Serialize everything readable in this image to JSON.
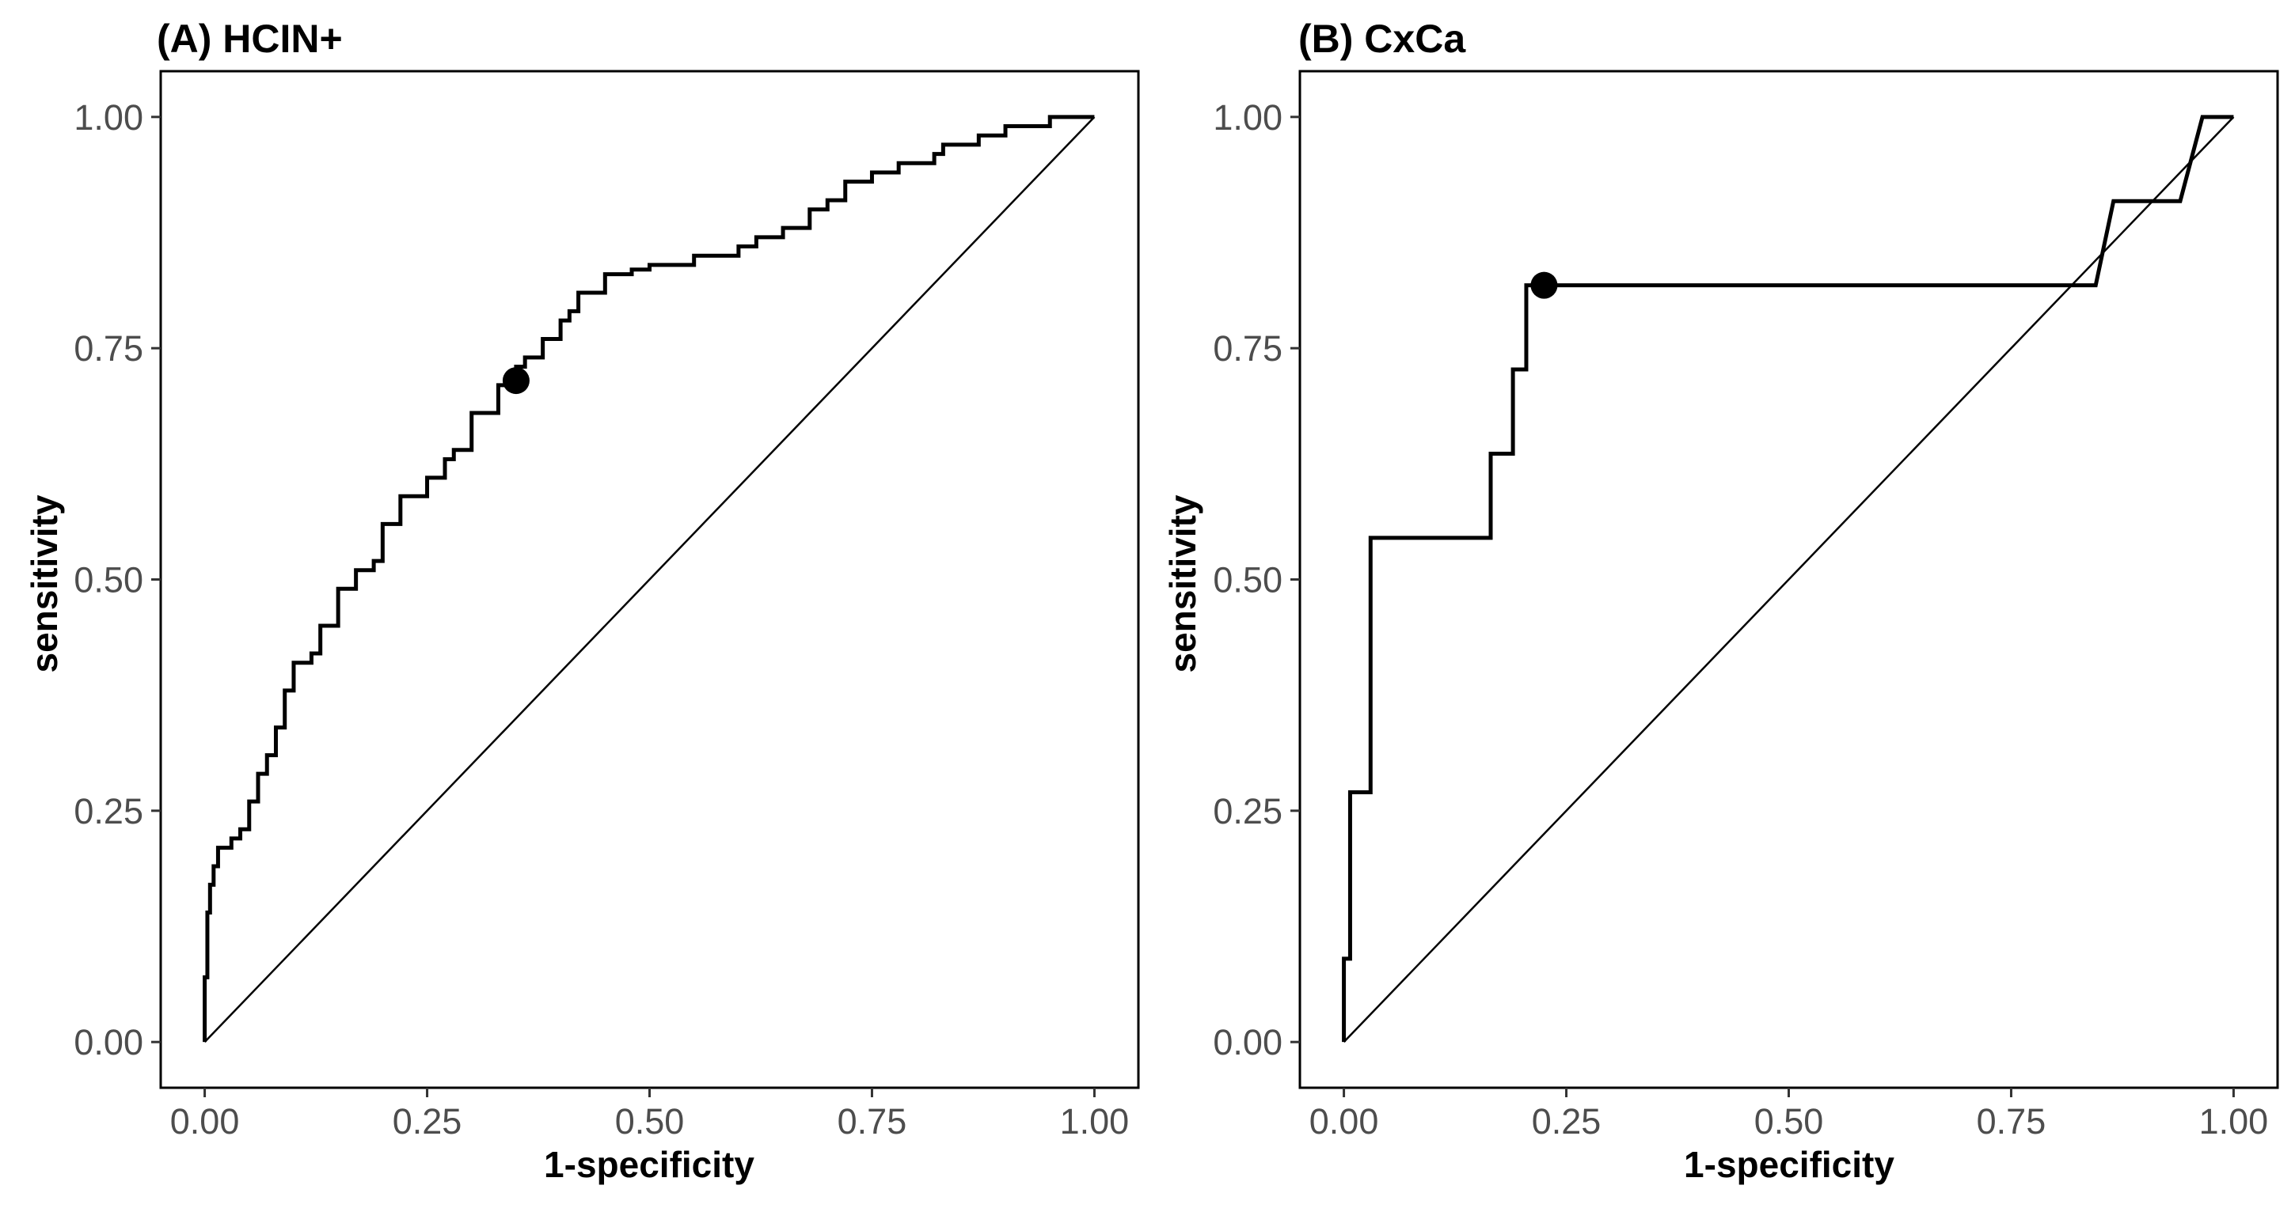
{
  "chart_data": [
    {
      "type": "line",
      "title": "(A) HCIN+",
      "xlabel": "1-specificity",
      "ylabel": "sensitivity",
      "xlim": [
        0,
        1
      ],
      "ylim": [
        0,
        1
      ],
      "xticks": [
        "0.00",
        "0.25",
        "0.50",
        "0.75",
        "1.00"
      ],
      "yticks": [
        "0.00",
        "0.25",
        "0.50",
        "0.75",
        "1.00"
      ],
      "grid": false,
      "reference_line": {
        "x": [
          0,
          1
        ],
        "y": [
          0,
          1
        ]
      },
      "roc_curve": {
        "x": [
          0.0,
          0.003,
          0.006,
          0.01,
          0.015,
          0.02,
          0.03,
          0.04,
          0.05,
          0.06,
          0.07,
          0.08,
          0.09,
          0.1,
          0.11,
          0.12,
          0.13,
          0.15,
          0.17,
          0.19,
          0.2,
          0.22,
          0.24,
          0.25,
          0.27,
          0.28,
          0.3,
          0.33,
          0.35,
          0.36,
          0.38,
          0.4,
          0.41,
          0.42,
          0.43,
          0.45,
          0.48,
          0.5,
          0.55,
          0.6,
          0.62,
          0.65,
          0.68,
          0.7,
          0.72,
          0.75,
          0.78,
          0.82,
          0.83,
          0.87,
          0.9,
          0.95,
          1.0
        ],
        "y": [
          0.0,
          0.07,
          0.14,
          0.17,
          0.19,
          0.21,
          0.21,
          0.22,
          0.23,
          0.26,
          0.29,
          0.31,
          0.34,
          0.38,
          0.41,
          0.41,
          0.42,
          0.45,
          0.49,
          0.51,
          0.52,
          0.56,
          0.59,
          0.59,
          0.61,
          0.63,
          0.64,
          0.68,
          0.71,
          0.73,
          0.74,
          0.76,
          0.78,
          0.79,
          0.81,
          0.81,
          0.83,
          0.835,
          0.84,
          0.85,
          0.86,
          0.87,
          0.88,
          0.9,
          0.91,
          0.93,
          0.94,
          0.95,
          0.96,
          0.97,
          0.98,
          0.99,
          1.0
        ]
      },
      "optimal_point": {
        "x": 0.35,
        "y": 0.715
      }
    },
    {
      "type": "line",
      "title": "(B) CxCa",
      "xlabel": "1-specificity",
      "ylabel": "sensitivity",
      "xlim": [
        0,
        1
      ],
      "ylim": [
        0,
        1
      ],
      "xticks": [
        "0.00",
        "0.25",
        "0.50",
        "0.75",
        "1.00"
      ],
      "yticks": [
        "0.00",
        "0.25",
        "0.50",
        "0.75",
        "1.00"
      ],
      "grid": false,
      "reference_line": {
        "x": [
          0,
          1
        ],
        "y": [
          0,
          1
        ]
      },
      "roc_curve": {
        "x": [
          0.0,
          0.0,
          0.007,
          0.007,
          0.03,
          0.03,
          0.165,
          0.165,
          0.19,
          0.19,
          0.205,
          0.205,
          0.22,
          0.22,
          0.23,
          0.845,
          0.865,
          0.94,
          0.965,
          1.0
        ],
        "y": [
          0.0,
          0.09,
          0.09,
          0.27,
          0.27,
          0.545,
          0.545,
          0.636,
          0.636,
          0.727,
          0.727,
          0.818,
          0.818,
          0.818,
          0.818,
          0.818,
          0.909,
          0.909,
          1.0,
          1.0
        ]
      },
      "optimal_point": {
        "x": 0.225,
        "y": 0.818
      }
    }
  ]
}
